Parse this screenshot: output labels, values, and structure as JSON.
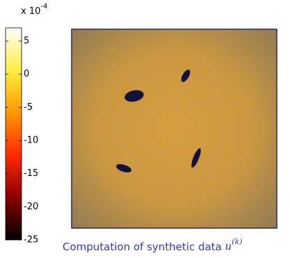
{
  "chart_data": {
    "type": "image",
    "colorbar": {
      "label": "x 10",
      "exponent": "-4",
      "clim": [
        -25,
        7
      ],
      "ticks": [
        5,
        0,
        -5,
        -10,
        -15,
        -20,
        -25
      ],
      "colormap": [
        "#000000",
        "#8a0000",
        "#ff2a00",
        "#ff9900",
        "#ffee40",
        "#ffffff"
      ]
    },
    "caption": {
      "text": "Computation of synthetic data",
      "math": "u",
      "superscript": "(k)"
    }
  }
}
